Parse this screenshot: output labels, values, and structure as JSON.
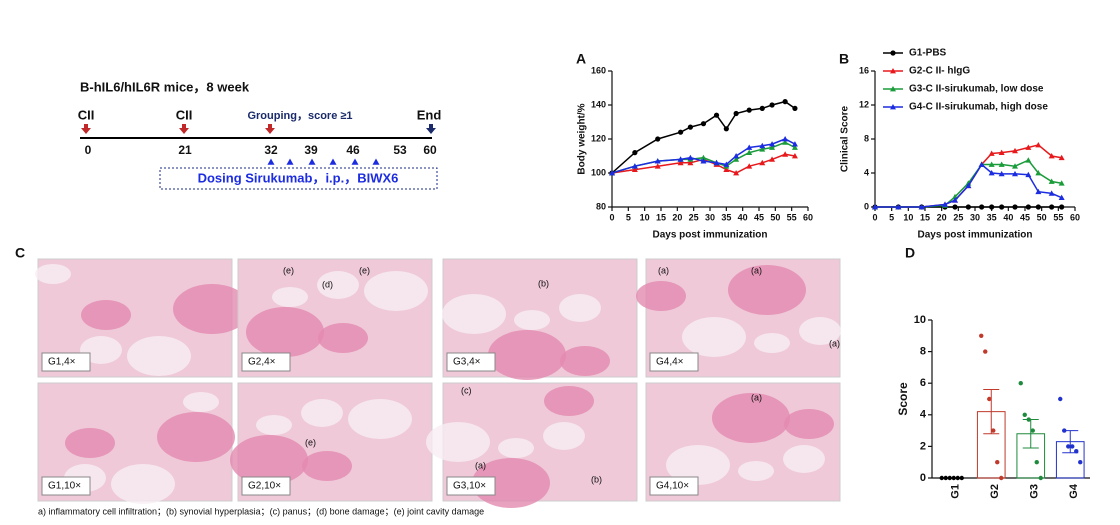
{
  "chart_data": [
    {
      "type": "line",
      "panel_label": "A",
      "y_label": "Body weight/%",
      "x_label": "Days post immunization",
      "x": [
        0,
        7,
        14,
        21,
        24,
        28,
        32,
        35,
        38,
        42,
        46,
        49,
        53,
        56
      ],
      "xlim": [
        0,
        60
      ],
      "xticks": [
        0,
        5,
        10,
        15,
        20,
        25,
        30,
        35,
        40,
        45,
        50,
        55,
        60
      ],
      "ylim": [
        80,
        160
      ],
      "yticks": [
        80,
        100,
        120,
        140,
        160
      ],
      "series": [
        {
          "color": "#000000",
          "marker": "circle",
          "values": [
            100,
            112,
            120,
            124,
            127,
            129,
            134,
            126,
            135,
            137,
            138,
            140,
            142,
            138
          ]
        },
        {
          "color": "#e8191c",
          "marker": "triangle",
          "values": [
            100,
            102,
            104,
            106,
            106,
            108,
            105,
            102,
            100,
            104,
            106,
            108,
            111,
            110
          ]
        },
        {
          "color": "#1a9c3a",
          "marker": "triangle",
          "values": [
            100,
            104,
            107,
            108,
            108,
            109,
            106,
            104,
            108,
            112,
            114,
            115,
            118,
            115
          ]
        },
        {
          "color": "#1c2ce0",
          "marker": "triangle",
          "values": [
            100,
            104,
            107,
            108,
            109,
            107,
            106,
            105,
            110,
            115,
            116,
            117,
            120,
            117
          ]
        }
      ]
    },
    {
      "type": "line",
      "panel_label": "B",
      "y_label": "Clinical Score",
      "x_label": "Days post immunization",
      "legend": "top",
      "x": [
        0,
        7,
        14,
        21,
        24,
        28,
        32,
        35,
        38,
        42,
        46,
        49,
        53,
        56
      ],
      "xlim": [
        0,
        60
      ],
      "xticks": [
        0,
        5,
        10,
        15,
        20,
        25,
        30,
        35,
        40,
        45,
        50,
        55,
        60
      ],
      "ylim": [
        0,
        16
      ],
      "yticks": [
        0,
        4,
        8,
        12,
        16
      ],
      "series": [
        {
          "name": "G1-PBS",
          "color": "#000000",
          "marker": "circle",
          "values": [
            0,
            0,
            0,
            0,
            0,
            0,
            0,
            0,
            0,
            0,
            0,
            0,
            0,
            0
          ]
        },
        {
          "name": "G2-C II- hIgG",
          "color": "#e8191c",
          "marker": "triangle",
          "values": [
            0,
            0,
            0,
            0.3,
            0.8,
            2.5,
            5,
            6.3,
            6.4,
            6.6,
            7,
            7.3,
            6,
            5.8
          ]
        },
        {
          "name": "G3-C II-sirukumab, low dose",
          "color": "#1a9c3a",
          "marker": "triangle",
          "values": [
            0,
            0,
            0,
            0.2,
            1.2,
            2.8,
            5,
            5,
            5,
            4.8,
            5.5,
            4,
            3,
            2.8
          ]
        },
        {
          "name": "G4-C II-sirukumab, high dose",
          "color": "#1c2ce0",
          "marker": "triangle",
          "values": [
            0,
            0,
            0,
            0.3,
            0.8,
            2.5,
            5,
            4,
            3.9,
            3.9,
            3.8,
            1.8,
            1.6,
            1.1
          ]
        }
      ]
    },
    {
      "type": "bar",
      "panel_label": "D",
      "y_label": "Score",
      "categories": [
        "G1",
        "G2",
        "G3",
        "G4"
      ],
      "values": [
        0,
        4.2,
        2.8,
        2.3
      ],
      "errors": [
        0,
        1.4,
        0.9,
        0.7
      ],
      "colors": [
        "#000000",
        "#c0392b",
        "#1e8a3c",
        "#2233cc"
      ],
      "points": [
        [
          0,
          0,
          0,
          0,
          0,
          0
        ],
        [
          9,
          8,
          5,
          3,
          1,
          0
        ],
        [
          6,
          4,
          3.7,
          3,
          1,
          0
        ],
        [
          5,
          3,
          2,
          2,
          1.7,
          1
        ]
      ],
      "ylim": [
        0,
        10
      ],
      "yticks": [
        0,
        2,
        4,
        6,
        8,
        10
      ]
    }
  ],
  "timeline": {
    "title": "B-hIL6/hIL6R mice，8 week",
    "events": [
      "CII",
      "CII",
      "Grouping，score ≥1",
      "End"
    ],
    "days": [
      "0",
      "21",
      "32",
      "39",
      "46",
      "53",
      "60"
    ],
    "dosing": "Dosing Sirukumab，i.p.，BIWX6"
  },
  "histology": {
    "panel_label": "C",
    "images": [
      {
        "label": "G1,4×",
        "annotations": []
      },
      {
        "label": "G2,4×",
        "annotations": [
          "(e)",
          "(d)",
          "(e)"
        ]
      },
      {
        "label": "G3,4×",
        "annotations": [
          "(b)"
        ]
      },
      {
        "label": "G4,4×",
        "annotations": [
          "(a)",
          "(a)",
          "(a)"
        ]
      },
      {
        "label": "G1,10×",
        "annotations": []
      },
      {
        "label": "G2,10×",
        "annotations": [
          "(e)"
        ]
      },
      {
        "label": "G3,10×",
        "annotations": [
          "(c)",
          "(a)",
          "(b)"
        ]
      },
      {
        "label": "G4,10×",
        "annotations": [
          "(a)"
        ]
      }
    ],
    "caption": "a) inflammatory cell infiltration；(b) synovial hyperplasia；(c) panus；(d) bone damage；(e) joint cavity damage"
  }
}
